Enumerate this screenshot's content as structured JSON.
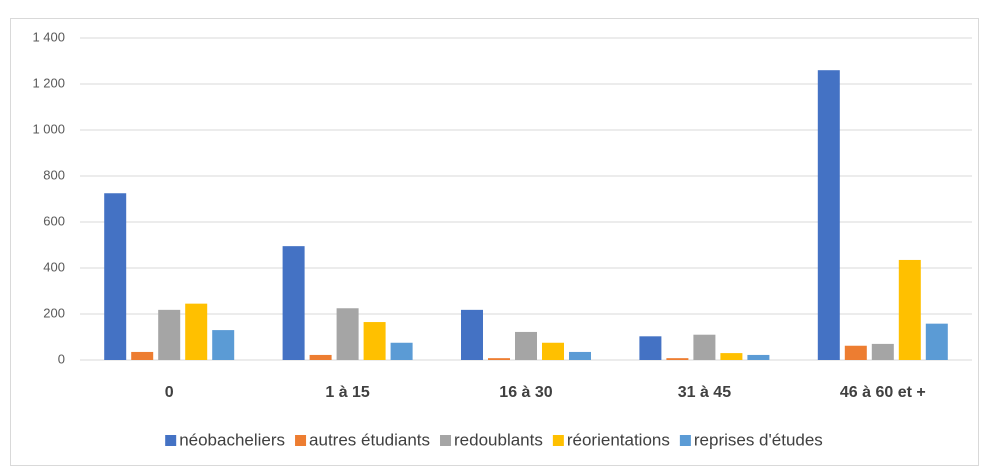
{
  "chart_data": {
    "type": "bar",
    "categories": [
      "0",
      "1 à 15",
      "16 à 30",
      "31 à 45",
      "46 à 60 et +"
    ],
    "series": [
      {
        "name": "néobacheliers",
        "color": "#4472c4",
        "values": [
          725,
          495,
          218,
          103,
          1260
        ]
      },
      {
        "name": "autres étudiants",
        "color": "#ed7d31",
        "values": [
          35,
          22,
          8,
          8,
          62
        ]
      },
      {
        "name": "redoublants",
        "color": "#a5a5a5",
        "values": [
          218,
          225,
          122,
          110,
          70
        ]
      },
      {
        "name": "réorientations",
        "color": "#ffc000",
        "values": [
          245,
          165,
          75,
          30,
          435
        ]
      },
      {
        "name": "reprises d'études",
        "color": "#5b9bd5",
        "values": [
          130,
          75,
          35,
          22,
          158
        ]
      }
    ],
    "ylim": [
      0,
      1400
    ],
    "yticks": [
      0,
      200,
      400,
      600,
      800,
      {
        "value": 1000,
        "label": "1 000"
      },
      {
        "value": 1200,
        "label": "1 200"
      },
      {
        "value": 1400,
        "label": "1 400"
      }
    ],
    "grid": true,
    "legend": "bottom"
  }
}
